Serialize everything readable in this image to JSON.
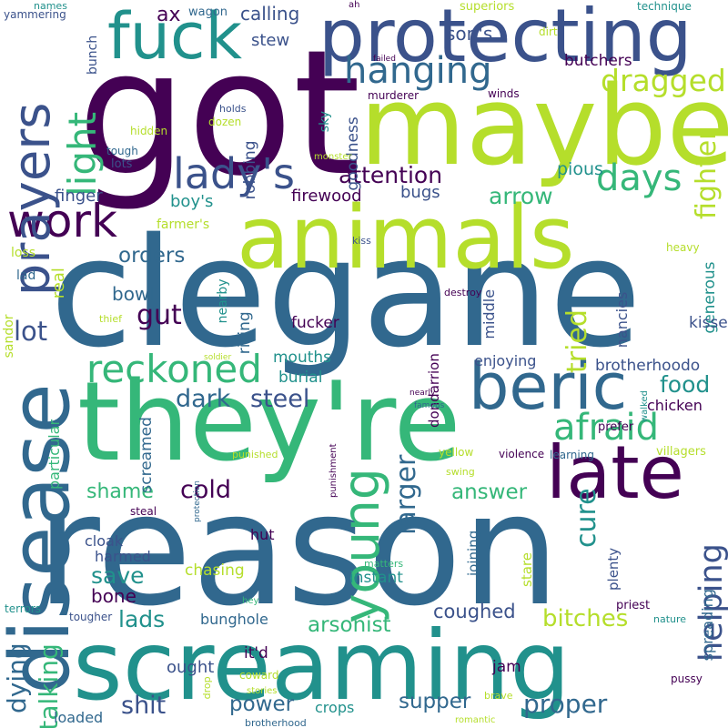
{
  "palette": {
    "deep_purple": "#440154",
    "indigo": "#3b528b",
    "slate_blue": "#31688e",
    "teal": "#21918c",
    "green_teal": "#1f9e89",
    "green": "#35b779",
    "lime": "#b5de2b",
    "yellow": "#fde725"
  },
  "words": [
    "got",
    "clegane",
    "reason",
    "screaming",
    "they're",
    "animals",
    "maybe",
    "protecting",
    "fuck",
    "disease",
    "beric",
    "late",
    "work",
    "lady's",
    "young",
    "hanging",
    "reckoned",
    "prayers",
    "afraid",
    "days",
    "light",
    "dragged",
    "attention",
    "dark",
    "steel",
    "gut",
    "lot",
    "orders",
    "arrow",
    "food",
    "fighter",
    "helping",
    "cure",
    "larger",
    "tried",
    "answer",
    "shame",
    "cold",
    "save",
    "lads",
    "arsonist",
    "supper",
    "proper",
    "shit",
    "power",
    "bitches",
    "coughed",
    "talking",
    "dying",
    "bone",
    "bowl",
    "finger",
    "boy's",
    "firewood",
    "bugs",
    "pious",
    "butchers",
    "son's",
    "ax",
    "calling",
    "stew",
    "wagon",
    "names",
    "yammering",
    "bunch",
    "superiors",
    "technique",
    "dirt",
    "failed",
    "murderer",
    "winds",
    "holds",
    "hidden",
    "dozen",
    "sky",
    "robbing",
    "goodness",
    "tough",
    "lots",
    "monster",
    "loss",
    "lad",
    "sandor",
    "farmer's",
    "real",
    "thief",
    "nearby",
    "rising",
    "mouths",
    "burial",
    "fucker",
    "dondarrion",
    "middle",
    "nancies",
    "generous",
    "kisser",
    "kiss",
    "heavy",
    "destroy",
    "enjoying",
    "brotherhoodo",
    "chicken",
    "screamed",
    "particular",
    "soldier",
    "nearly",
    "famous",
    "walked",
    "prefer",
    "villagers",
    "yellow",
    "violence",
    "learning",
    "swing",
    "punishment",
    "protection",
    "punished",
    "steal",
    "joining",
    "stare",
    "plenty",
    "spreading",
    "priest",
    "nature",
    "chasing",
    "matters",
    "instant",
    "harmed",
    "cloak",
    "hut",
    "terrors",
    "hey",
    "tougher",
    "bunghole",
    "it'd",
    "ought",
    "jam",
    "coward",
    "drop",
    "stories",
    "brave",
    "pussy",
    "crops",
    "loaded",
    "brotherhood",
    "romantic",
    "ah"
  ]
}
